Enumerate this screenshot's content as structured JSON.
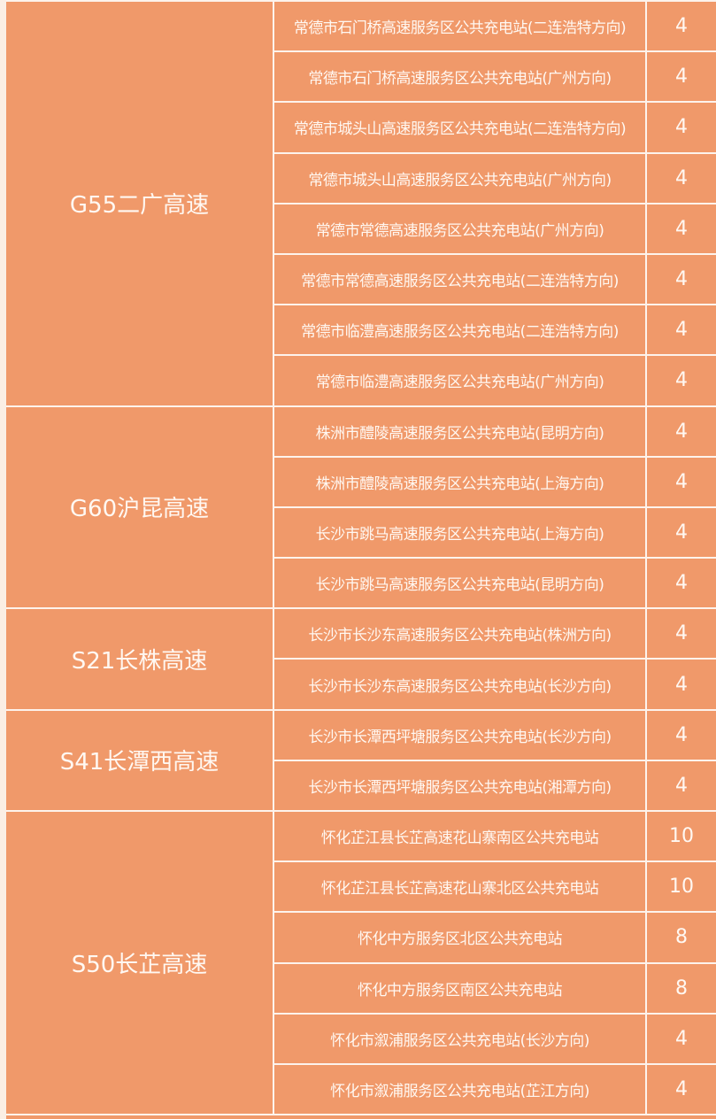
{
  "colors": {
    "cell_bg": "#f0996a",
    "border": "#fdf3ec",
    "text": "#fff8f2"
  },
  "groups": [
    {
      "name": "G55二广高速",
      "rows": [
        {
          "station": "常德市石门桥高速服务区公共充电站(二连浩特方向)",
          "count": "4"
        },
        {
          "station": "常德市石门桥高速服务区公共充电站(广州方向)",
          "count": "4"
        },
        {
          "station": "常德市城头山高速服务区公共充电站(二连浩特方向)",
          "count": "4"
        },
        {
          "station": "常德市城头山高速服务区公共充电站(广州方向)",
          "count": "4"
        },
        {
          "station": "常德市常德高速服务区公共充电站(广州方向)",
          "count": "4"
        },
        {
          "station": "常德市常德高速服务区公共充电站(二连浩特方向)",
          "count": "4"
        },
        {
          "station": "常德市临澧高速服务区公共充电站(二连浩特方向)",
          "count": "4"
        },
        {
          "station": "常德市临澧高速服务区公共充电站(广州方向)",
          "count": "4"
        }
      ]
    },
    {
      "name": "G60沪昆高速",
      "rows": [
        {
          "station": "株洲市醴陵高速服务区公共充电站(昆明方向)",
          "count": "4"
        },
        {
          "station": "株洲市醴陵高速服务区公共充电站(上海方向)",
          "count": "4"
        },
        {
          "station": "长沙市跳马高速服务区公共充电站(上海方向)",
          "count": "4"
        },
        {
          "station": "长沙市跳马高速服务区公共充电站(昆明方向)",
          "count": "4"
        }
      ]
    },
    {
      "name": "S21长株高速",
      "rows": [
        {
          "station": "长沙市长沙东高速服务区公共充电站(株洲方向)",
          "count": "4"
        },
        {
          "station": "长沙市长沙东高速服务区公共充电站(长沙方向)",
          "count": "4"
        }
      ]
    },
    {
      "name": "S41长潭西高速",
      "rows": [
        {
          "station": "长沙市长潭西坪塘服务区公共充电站(长沙方向)",
          "count": "4"
        },
        {
          "station": "长沙市长潭西坪塘服务区公共充电站(湘潭方向)",
          "count": "4"
        }
      ]
    },
    {
      "name": "S50长芷高速",
      "rows": [
        {
          "station": "怀化芷江县长芷高速花山寨南区公共充电站",
          "count": "10"
        },
        {
          "station": "怀化芷江县长芷高速花山寨北区公共充电站",
          "count": "10"
        },
        {
          "station": "怀化中方服务区北区公共充电站",
          "count": "8"
        },
        {
          "station": "怀化中方服务区南区公共充电站",
          "count": "8"
        },
        {
          "station": "怀化市溆浦服务区公共充电站(长沙方向)",
          "count": "4"
        },
        {
          "station": "怀化市溆浦服务区公共充电站(芷江方向)",
          "count": "4"
        }
      ]
    }
  ]
}
